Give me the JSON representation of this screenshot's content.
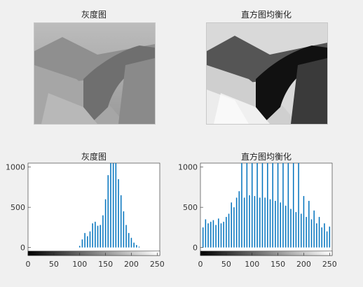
{
  "figure": {
    "titles": {
      "top_left": "灰度图",
      "top_right": "直方图均衡化",
      "bottom_left": "灰度图",
      "bottom_right": "直方图均衡化"
    }
  },
  "colors": {
    "background": "#f0f0f0",
    "bar": "#0072bd",
    "axis": "#262626"
  },
  "chart_data": [
    {
      "type": "bar",
      "title": "灰度图",
      "xlabel": "",
      "ylabel": "",
      "xlim": [
        0,
        255
      ],
      "ylim": [
        -100,
        1050
      ],
      "xticks": [
        0,
        50,
        100,
        150,
        200,
        250
      ],
      "yticks": [
        0,
        500,
        1000
      ],
      "colorbar": "grayscale 0-255 below axis",
      "x": [
        100,
        105,
        110,
        115,
        120,
        125,
        130,
        135,
        140,
        145,
        150,
        155,
        160,
        165,
        170,
        175,
        180,
        185,
        190,
        195,
        200,
        205,
        210,
        215,
        220
      ],
      "values": [
        20,
        100,
        180,
        140,
        200,
        300,
        320,
        270,
        280,
        400,
        600,
        900,
        1050,
        1050,
        1050,
        850,
        650,
        450,
        280,
        180,
        120,
        60,
        30,
        10,
        0
      ]
    },
    {
      "type": "bar",
      "title": "直方图均衡化",
      "xlabel": "",
      "ylabel": "",
      "xlim": [
        0,
        255
      ],
      "ylim": [
        -100,
        1050
      ],
      "xticks": [
        0,
        50,
        100,
        150,
        200,
        250
      ],
      "yticks": [
        0,
        500,
        1000
      ],
      "colorbar": "grayscale 0-255 below axis",
      "x": [
        5,
        10,
        15,
        20,
        25,
        30,
        35,
        40,
        45,
        50,
        55,
        60,
        65,
        70,
        75,
        80,
        85,
        90,
        95,
        100,
        105,
        110,
        115,
        120,
        125,
        130,
        135,
        140,
        145,
        150,
        155,
        160,
        165,
        170,
        175,
        180,
        185,
        190,
        195,
        200,
        205,
        210,
        215,
        220,
        225,
        230,
        235,
        240,
        245,
        250
      ],
      "values": [
        250,
        350,
        300,
        320,
        340,
        280,
        360,
        300,
        320,
        380,
        420,
        560,
        500,
        620,
        700,
        1050,
        620,
        1050,
        650,
        1050,
        640,
        1050,
        620,
        1050,
        620,
        1050,
        600,
        1050,
        580,
        1050,
        560,
        1050,
        520,
        1050,
        480,
        1050,
        440,
        1050,
        420,
        640,
        380,
        580,
        350,
        460,
        300,
        380,
        250,
        300,
        200,
        260
      ]
    }
  ]
}
